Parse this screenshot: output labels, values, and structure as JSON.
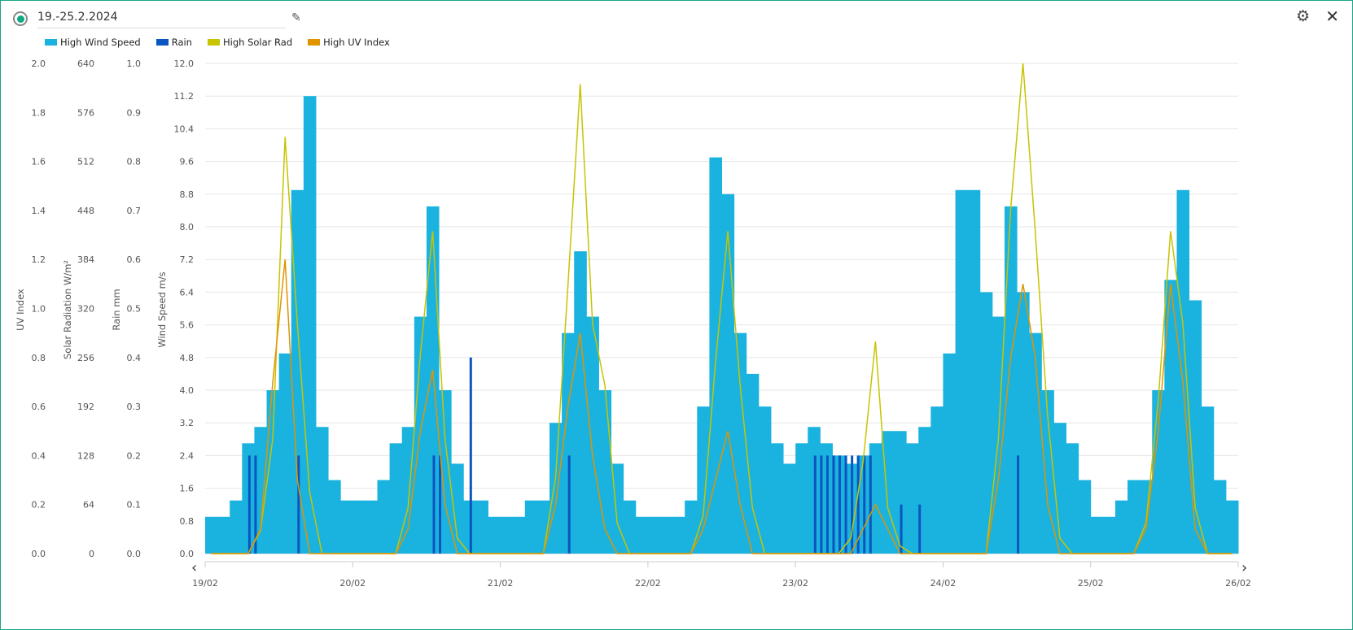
{
  "header": {
    "title": "19.-25.2.2024",
    "edit_icon": "pencil-icon",
    "settings_icon": "gear-icon",
    "close_icon": "close-icon"
  },
  "chart_data": {
    "type": "bar+line",
    "legend": [
      {
        "name": "High Wind Speed",
        "color": "#1ab3e0"
      },
      {
        "name": "Rain",
        "color": "#0a55c0"
      },
      {
        "name": "High Solar Rad",
        "color": "#c8c400"
      },
      {
        "name": "High UV Index",
        "color": "#e09400"
      }
    ],
    "legend_placement": "top-left",
    "axes": [
      {
        "label": "UV Index",
        "range": [
          0,
          2
        ],
        "ticks": [
          "0.0",
          "0.2",
          "0.4",
          "0.6",
          "0.8",
          "1.0",
          "1.2",
          "1.4",
          "1.6",
          "1.8",
          "2.0"
        ]
      },
      {
        "label": "Solar Radiation W/m²",
        "range": [
          0,
          640
        ],
        "ticks": [
          "0",
          "64",
          "128",
          "192",
          "256",
          "320",
          "384",
          "448",
          "512",
          "576",
          "640"
        ]
      },
      {
        "label": "Rain mm",
        "range": [
          0,
          1
        ],
        "ticks": [
          "0.0",
          "0.1",
          "0.2",
          "0.3",
          "0.4",
          "0.5",
          "0.6",
          "0.7",
          "0.8",
          "0.9",
          "1.0"
        ]
      },
      {
        "label": "Wind Speed m/s",
        "range": [
          0,
          12
        ],
        "ticks": [
          "0.0",
          "0.8",
          "1.6",
          "2.4",
          "3.2",
          "4.0",
          "4.8",
          "5.6",
          "6.4",
          "7.2",
          "8.0",
          "8.8",
          "9.6",
          "10.4",
          "11.2",
          "12.0"
        ]
      }
    ],
    "x_ticks": [
      "19/02",
      "20/02",
      "21/02",
      "22/02",
      "23/02",
      "24/02",
      "25/02",
      "26/02"
    ],
    "x_interval_hours": 2,
    "wind_speed": [
      0.9,
      0.9,
      1.3,
      2.7,
      3.1,
      4.0,
      4.9,
      8.9,
      11.2,
      3.1,
      1.8,
      1.3,
      1.3,
      1.3,
      1.8,
      2.7,
      3.1,
      5.8,
      8.5,
      4.0,
      2.2,
      1.3,
      1.3,
      0.9,
      0.9,
      0.9,
      1.3,
      1.3,
      3.2,
      5.4,
      7.4,
      5.8,
      4.0,
      2.2,
      1.3,
      0.9,
      0.9,
      0.9,
      0.9,
      1.3,
      3.6,
      9.7,
      8.8,
      5.4,
      4.4,
      3.6,
      2.7,
      2.2,
      2.7,
      3.1,
      2.7,
      2.4,
      2.2,
      2.4,
      2.7,
      3.0,
      3.0,
      2.7,
      3.1,
      3.6,
      4.9,
      8.9,
      8.9,
      6.4,
      5.8,
      8.5,
      6.4,
      5.4,
      4.0,
      3.2,
      2.7,
      1.8,
      0.9,
      0.9,
      1.3,
      1.8,
      1.8,
      4.0,
      6.7,
      8.9,
      6.2,
      3.6,
      1.8,
      1.3
    ],
    "solar_rad": [
      0,
      0,
      0,
      0,
      30,
      150,
      544,
      300,
      80,
      0,
      0,
      0,
      0,
      0,
      0,
      0,
      60,
      260,
      421,
      150,
      20,
      0,
      0,
      0,
      0,
      0,
      0,
      0,
      100,
      350,
      613,
      300,
      220,
      40,
      0,
      0,
      0,
      0,
      0,
      0,
      50,
      250,
      421,
      220,
      60,
      0,
      0,
      0,
      0,
      0,
      0,
      0,
      20,
      120,
      277,
      60,
      10,
      0,
      0,
      0,
      0,
      0,
      0,
      0,
      150,
      450,
      640,
      420,
      180,
      20,
      0,
      0,
      0,
      0,
      0,
      0,
      40,
      200,
      421,
      300,
      60,
      0,
      0,
      0
    ],
    "uv_index": [
      0,
      0,
      0,
      0,
      0.1,
      0.7,
      1.2,
      0.3,
      0,
      0,
      0,
      0,
      0,
      0,
      0,
      0,
      0.1,
      0.5,
      0.75,
      0.2,
      0,
      0,
      0,
      0,
      0,
      0,
      0,
      0,
      0.2,
      0.6,
      0.9,
      0.4,
      0.1,
      0,
      0,
      0,
      0,
      0,
      0,
      0,
      0.1,
      0.3,
      0.5,
      0.2,
      0,
      0,
      0,
      0,
      0,
      0,
      0,
      0,
      0,
      0.1,
      0.2,
      0.1,
      0,
      0,
      0,
      0,
      0,
      0,
      0,
      0,
      0.3,
      0.8,
      1.1,
      0.8,
      0.2,
      0,
      0,
      0,
      0,
      0,
      0,
      0,
      0.1,
      0.5,
      1.1,
      0.7,
      0.1,
      0,
      0,
      0
    ],
    "rain": [
      {
        "hour": 7,
        "mm": 0.2
      },
      {
        "hour": 8,
        "mm": 0.2
      },
      {
        "hour": 15,
        "mm": 0.2
      },
      {
        "hour": 37,
        "mm": 0.2
      },
      {
        "hour": 38,
        "mm": 0.2
      },
      {
        "hour": 43,
        "mm": 0.4
      },
      {
        "hour": 59,
        "mm": 0.2
      },
      {
        "hour": 99,
        "mm": 0.2
      },
      {
        "hour": 100,
        "mm": 0.2
      },
      {
        "hour": 101,
        "mm": 0.2
      },
      {
        "hour": 102,
        "mm": 0.2
      },
      {
        "hour": 103,
        "mm": 0.2
      },
      {
        "hour": 104,
        "mm": 0.2
      },
      {
        "hour": 105,
        "mm": 0.2
      },
      {
        "hour": 106,
        "mm": 0.2
      },
      {
        "hour": 107,
        "mm": 0.2
      },
      {
        "hour": 108,
        "mm": 0.2
      },
      {
        "hour": 113,
        "mm": 0.1
      },
      {
        "hour": 116,
        "mm": 0.1
      },
      {
        "hour": 132,
        "mm": 0.2
      }
    ]
  }
}
